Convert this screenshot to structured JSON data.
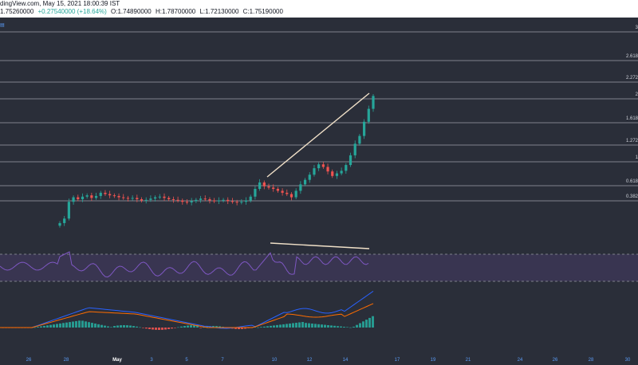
{
  "header": {
    "line1": "dingView.com, May 15, 2021 18:00:39 IST",
    "price": "1.75260000",
    "change": "+0.27540000 (+18.64%)",
    "open": "O:1.74890000",
    "high": "H:1.78700000",
    "low": "L:1.72130000",
    "close": "C:1.75190000"
  },
  "colors": {
    "background": "#2a2e39",
    "up": "#26a69a",
    "down": "#ef5350",
    "rsi": "#7e57c2",
    "trendline": "#f0e0c8",
    "fib_line": "#b2b5be"
  },
  "corner_icon": "chart-settings-icon",
  "chart_data": {
    "type": "candlestick",
    "fib_levels": [
      {
        "label": "3",
        "value": 3
      },
      {
        "label": "2.618",
        "value": 2.618
      },
      {
        "label": "2.272",
        "value": 2.272
      },
      {
        "label": "2",
        "value": 2
      },
      {
        "label": "1.618",
        "value": 1.618
      },
      {
        "label": "1.272",
        "value": 1.272
      },
      {
        "label": "1",
        "value": 1
      },
      {
        "label": "0.618",
        "value": 0.618
      },
      {
        "label": "0.382",
        "value": 0.382
      }
    ],
    "x_labels": [
      {
        "label": "26",
        "bold": false
      },
      {
        "label": "28",
        "bold": false
      },
      {
        "label": "May",
        "bold": true
      },
      {
        "label": "3",
        "bold": false
      },
      {
        "label": "5",
        "bold": false
      },
      {
        "label": "7",
        "bold": false
      },
      {
        "label": "10",
        "bold": false
      },
      {
        "label": "12",
        "bold": false
      },
      {
        "label": "14",
        "bold": false
      },
      {
        "label": "17",
        "bold": false
      },
      {
        "label": "19",
        "bold": false
      },
      {
        "label": "21",
        "bold": false
      },
      {
        "label": "24",
        "bold": false
      },
      {
        "label": "26",
        "bold": false
      },
      {
        "label": "28",
        "bold": false
      },
      {
        "label": "30",
        "bold": false
      }
    ],
    "price_path": [
      0.05,
      0.12,
      0.38,
      0.45,
      0.42,
      0.46,
      0.48,
      0.44,
      0.47,
      0.52,
      0.5,
      0.48,
      0.47,
      0.45,
      0.44,
      0.43,
      0.44,
      0.42,
      0.4,
      0.41,
      0.43,
      0.45,
      0.46,
      0.44,
      0.42,
      0.41,
      0.4,
      0.38,
      0.37,
      0.39,
      0.41,
      0.43,
      0.42,
      0.4,
      0.39,
      0.4,
      0.41,
      0.39,
      0.38,
      0.37,
      0.38,
      0.4,
      0.46,
      0.58,
      0.68,
      0.62,
      0.6,
      0.58,
      0.55,
      0.52,
      0.5,
      0.45,
      0.55,
      0.65,
      0.72,
      0.8,
      0.9,
      0.96,
      0.92,
      0.85,
      0.78,
      0.82,
      0.86,
      0.95,
      1.1,
      1.28,
      1.4,
      1.62,
      1.82,
      2.02
    ]
  }
}
